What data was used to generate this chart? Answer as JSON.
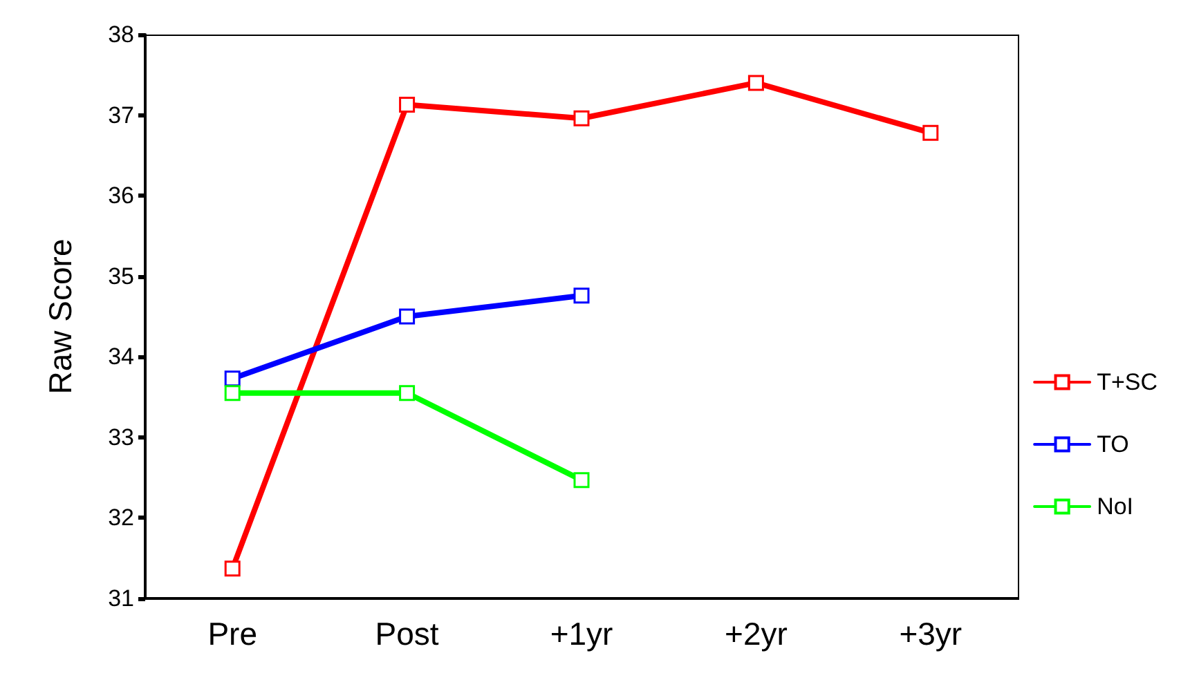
{
  "chart_data": {
    "type": "line",
    "ylabel": "Raw Score",
    "categories": [
      "Pre",
      "Post",
      "+1yr",
      "+2yr",
      "+3yr"
    ],
    "series": [
      {
        "name": "T+SC",
        "color": "#ff0000",
        "values": [
          31.37,
          37.13,
          36.96,
          37.4,
          36.78
        ]
      },
      {
        "name": "TO",
        "color": "#0000ff",
        "values": [
          33.73,
          34.5,
          34.76,
          null,
          null
        ]
      },
      {
        "name": "NoI",
        "color": "#00ff00",
        "values": [
          33.55,
          33.55,
          32.47,
          null,
          null
        ]
      }
    ],
    "ylim": [
      31,
      38
    ],
    "yticks": [
      31,
      32,
      33,
      34,
      35,
      36,
      37,
      38
    ],
    "grid": false,
    "legend": "right",
    "marker": "square",
    "line_style": "solid"
  }
}
